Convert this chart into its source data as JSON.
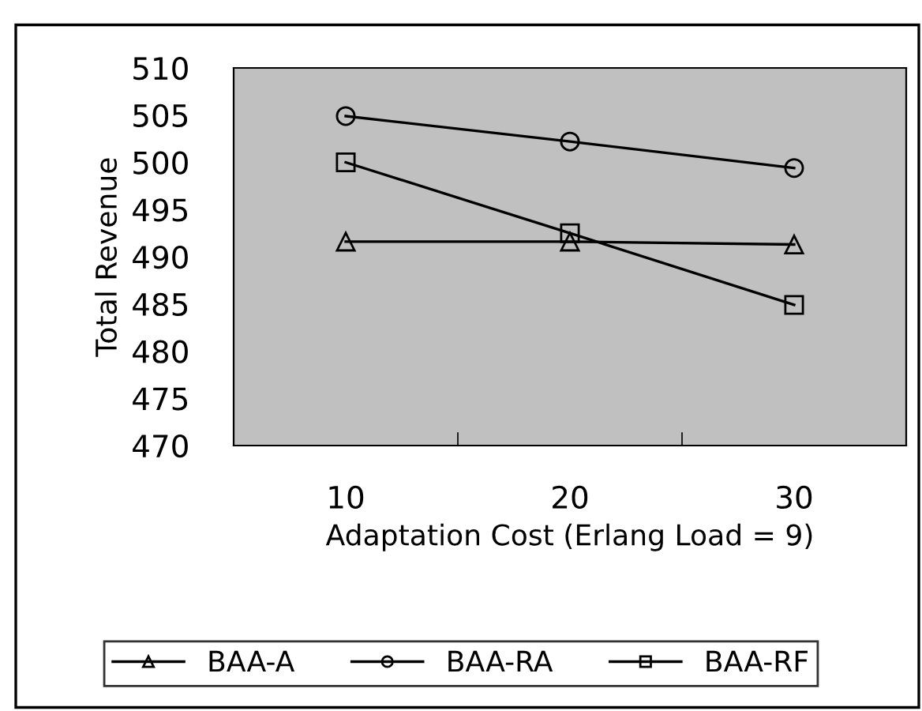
{
  "chart_data": {
    "type": "line",
    "xlabel": "Adaptation Cost (Erlang Load = 9)",
    "ylabel": "Total Revenue",
    "categories": [
      "10",
      "20",
      "30"
    ],
    "series": [
      {
        "name": "BAA-A",
        "color": "#000000",
        "marker": "triangle",
        "values": [
          491.6,
          491.6,
          491.3
        ]
      },
      {
        "name": "BAA-RA",
        "color": "#000000",
        "marker": "circle",
        "values": [
          504.9,
          502.2,
          499.4
        ]
      },
      {
        "name": "BAA-RF",
        "color": "#000000",
        "marker": "square",
        "values": [
          500,
          492.5,
          484.9
        ]
      }
    ],
    "ylim": [
      470,
      510
    ],
    "yticks": [
      470,
      475,
      480,
      485,
      490,
      495,
      500,
      505,
      510
    ],
    "grid": false,
    "legend": "bottom",
    "line_style": "solid"
  }
}
